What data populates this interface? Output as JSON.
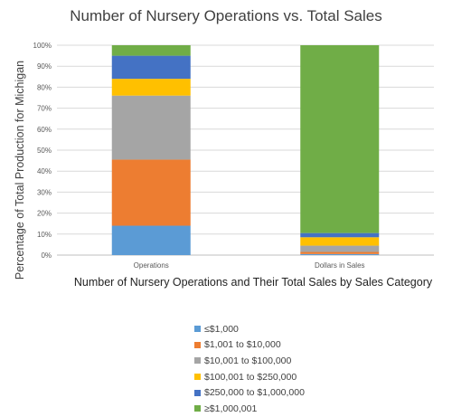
{
  "chart_data": {
    "type": "bar",
    "stacked": true,
    "title": "Number of Nursery Operations vs. Total Sales",
    "xlabel": "Number of Nursery Operations and Their Total Sales by Sales Category",
    "ylabel": "Percentage of Total Production for Michigan",
    "categories": [
      "Operations",
      "Dollars in Sales"
    ],
    "ylim": [
      0,
      100
    ],
    "yticks": [
      "0%",
      "10%",
      "20%",
      "30%",
      "40%",
      "50%",
      "60%",
      "70%",
      "80%",
      "90%",
      "100%"
    ],
    "grid": true,
    "legend_position": "bottom",
    "series": [
      {
        "name": "≤$1,000",
        "color": "#5B9BD5",
        "values": [
          14,
          0.5
        ]
      },
      {
        "name": "$1,001 to $10,000",
        "color": "#ED7D31",
        "values": [
          31.5,
          1
        ]
      },
      {
        "name": "$10,001 to $100,000",
        "color": "#A5A5A5",
        "values": [
          30.5,
          3
        ]
      },
      {
        "name": "$100,001 to $250,000",
        "color": "#FFC000",
        "values": [
          8,
          4
        ]
      },
      {
        "name": "$250,000 to $1,000,000",
        "color": "#4472C4",
        "values": [
          11,
          2
        ]
      },
      {
        "name": "≥$1,000,001",
        "color": "#70AD47",
        "values": [
          5,
          89.5
        ]
      }
    ]
  }
}
